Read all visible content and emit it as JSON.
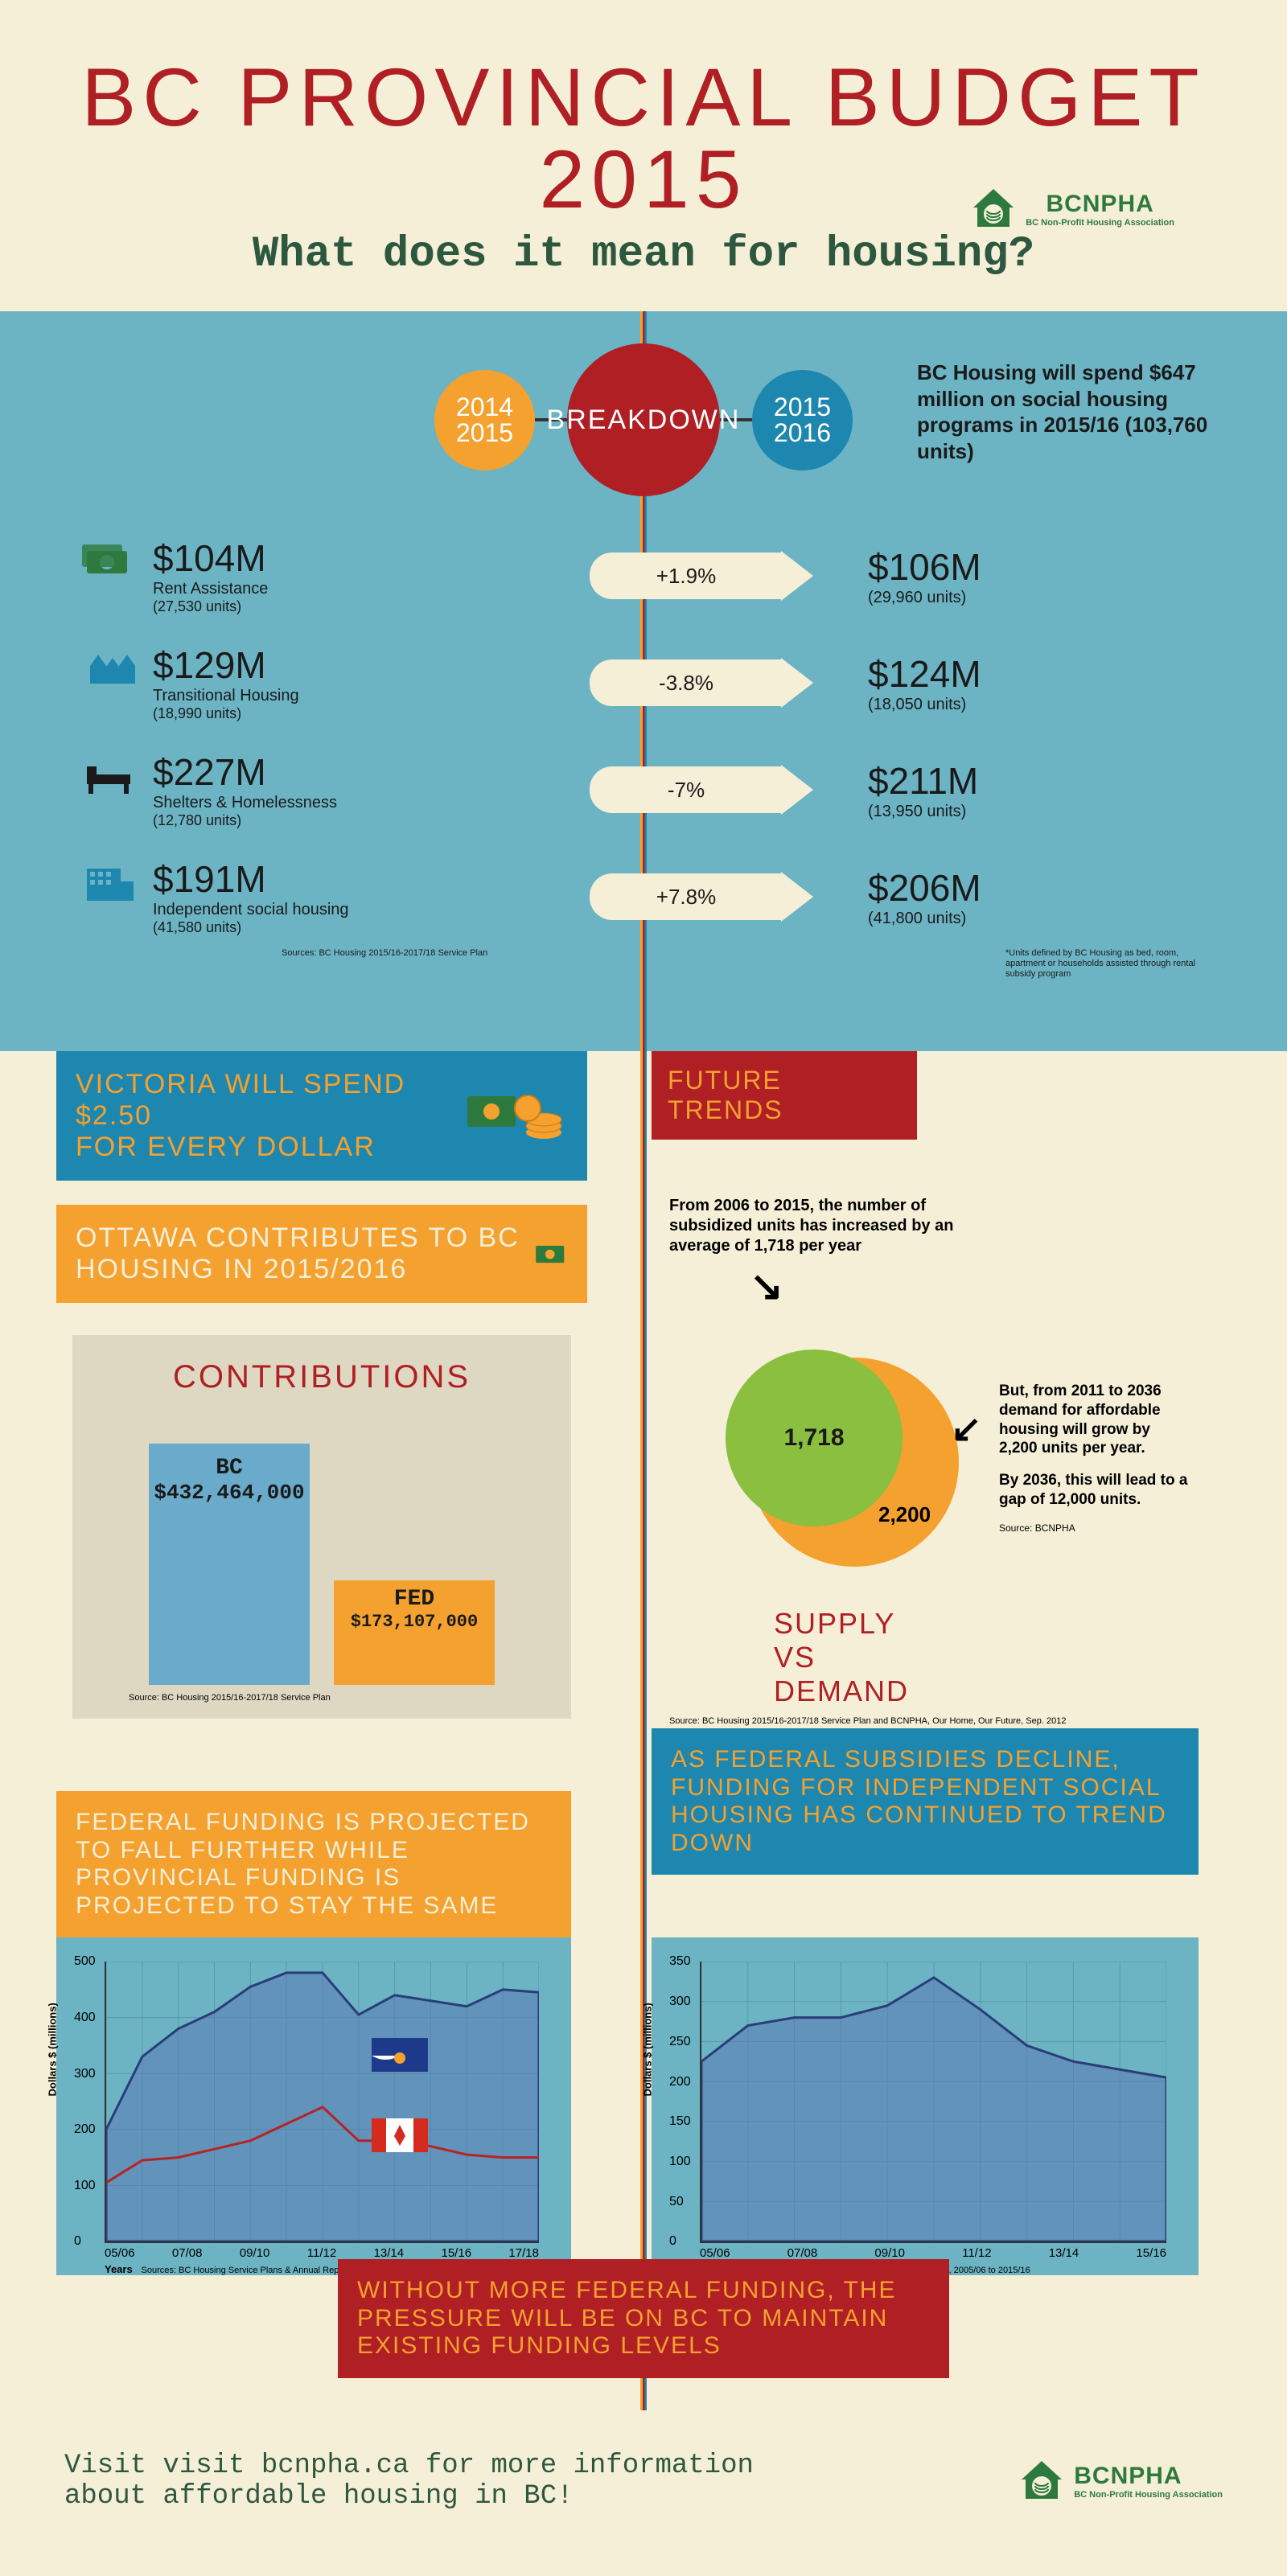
{
  "header": {
    "title": "BC PROVINCIAL BUDGET 2015",
    "subtitle": "What does it mean for housing?"
  },
  "logo": {
    "name": "BCNPHA",
    "sub": "BC Non-Profit Housing Association"
  },
  "breakdown": {
    "year_left_a": "2014",
    "year_left_b": "2015",
    "center": "BREAKDOWN",
    "year_right_a": "2015",
    "year_right_b": "2016",
    "top_text": "BC Housing will spend $647 million on social housing programs in 2015/16 (103,760 units)",
    "rows": [
      {
        "amt_l": "$104M",
        "desc": "Rent Assistance",
        "units_l": "(27,530 units)",
        "delta": "+1.9%",
        "amt_r": "$106M",
        "units_r": "(29,960 units)"
      },
      {
        "amt_l": "$129M",
        "desc": "Transitional Housing",
        "units_l": "(18,990 units)",
        "delta": "-3.8%",
        "amt_r": "$124M",
        "units_r": "(18,050 units)"
      },
      {
        "amt_l": "$227M",
        "desc": "Shelters & Homelessness",
        "units_l": "(12,780 units)",
        "delta": "-7%",
        "amt_r": "$211M",
        "units_r": "(13,950 units)"
      },
      {
        "amt_l": "$191M",
        "desc": "Independent social housing",
        "units_l": "(41,580 units)",
        "delta": "+7.8%",
        "amt_r": "$206M",
        "units_r": "(41,800 units)"
      }
    ],
    "src_left": "Sources: BC Housing 2015/16-2017/18 Service Plan",
    "note_right": "*Units defined by BC Housing as bed, room, apartment or households assisted through rental subsidy program"
  },
  "victoria": {
    "line1": "VICTORIA WILL SPEND",
    "line2": "$2.50",
    "line3": "FOR EVERY DOLLAR"
  },
  "ottawa": {
    "text": "OTTAWA CONTRIBUTES TO BC HOUSING IN 2015/2016"
  },
  "future_trends": "FUTURE TRENDS",
  "contrib": {
    "title": "CONTRIBUTIONS",
    "bc_label": "BC",
    "bc_value": "$432,464,000",
    "fed_label": "FED",
    "fed_value": "$173,107,000",
    "src": "Source: BC Housing\n2015/16-2017/18 Service Plan",
    "colors": {
      "bc": "#6aaacb",
      "fed": "#f4a12f"
    }
  },
  "supply_demand": {
    "top_text": "From 2006 to 2015, the number of subsidized units has increased by an average of 1,718 per year",
    "val1": "1,718",
    "val2": "2,200",
    "title_a": "SUPPLY",
    "title_b": "VS",
    "title_c": "DEMAND",
    "right_text_1": "But, from 2011 to 2036 demand for affordable housing will grow by 2,200 units per year.",
    "right_text_2": "By 2036, this will lead to a gap of 12,000 units.",
    "right_src": "Source: BCNPHA",
    "bottom_src": "Source: BC Housing 2015/16-2017/18 Service Plan and BCNPHA, Our Home, Our Future, Sep. 2012",
    "colors": {
      "green": "#8bbf3f",
      "orange": "#f4a12f"
    }
  },
  "proj_left": "FEDERAL FUNDING IS PROJECTED TO FALL FURTHER WHILE PROVINCIAL FUNDING IS PROJECTED TO STAY THE SAME",
  "proj_right": "AS FEDERAL SUBSIDIES DECLINE, FUNDING FOR INDEPENDENT SOCIAL HOUSING HAS CONTINUED TO TREND DOWN",
  "chart_left": {
    "ylim": [
      0,
      500
    ],
    "ytick_step": 100,
    "x_labels": [
      "05/06",
      "",
      "07/08",
      "",
      "09/10",
      "",
      "11/12",
      "",
      "13/14",
      "",
      "15/16",
      "",
      "17/18"
    ],
    "y_title": "Dollars $ (millions)",
    "x_title": "Years",
    "src": "Sources: BC Housing Service Plans & Annual Reports, 2005/06 to 2015/16",
    "series_area": [
      200,
      330,
      380,
      410,
      455,
      480,
      480,
      405,
      440,
      430,
      420,
      450,
      445
    ],
    "series_line": [
      105,
      145,
      150,
      165,
      180,
      210,
      240,
      180,
      180,
      170,
      155,
      150,
      150
    ],
    "colors": {
      "area_fill": "rgba(90,120,180,0.55)",
      "area_stroke": "#2a3d7a",
      "line": "#b52424"
    }
  },
  "chart_right": {
    "ylim": [
      0,
      350
    ],
    "ytick_step": 50,
    "x_labels": [
      "05/06",
      "",
      "07/08",
      "",
      "09/10",
      "",
      "11/12",
      "",
      "13/14",
      "",
      "15/16"
    ],
    "y_title": "Dollars $ (millions)",
    "x_title": "Years",
    "src": "Sources: BC Housing Service Plans & Annual Reports, 2005/06 to 2015/16",
    "series_area": [
      225,
      270,
      280,
      280,
      295,
      330,
      290,
      245,
      225,
      215,
      205
    ],
    "colors": {
      "area_fill": "rgba(90,120,180,0.55)",
      "area_stroke": "#2a3d7a"
    }
  },
  "bottom_banner": "WITHOUT MORE FEDERAL FUNDING, THE PRESSURE WILL BE ON BC TO MAINTAIN EXISTING FUNDING LEVELS",
  "footer": "Visit visit bcnpha.ca for more information about affordable housing in BC!",
  "palette": {
    "cream": "#f5efd7",
    "teal": "#6cb4c4",
    "blue": "#1d87af",
    "orange": "#f4a12f",
    "red": "#af1f24",
    "green_logo": "#2e7a3e"
  }
}
